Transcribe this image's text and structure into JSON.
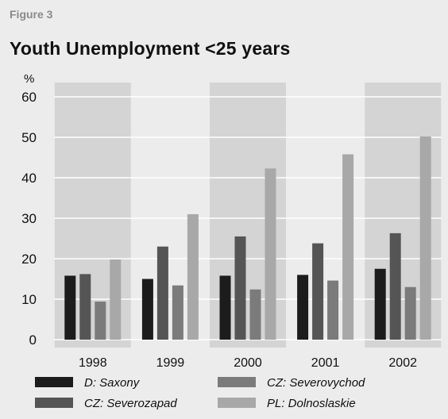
{
  "figure_label": "Figure 3",
  "chart_data": {
    "type": "bar",
    "title": "Youth Unemployment <25 years",
    "ylabel": "%",
    "xlabel": "",
    "ylim": [
      0,
      60
    ],
    "yticks": [
      0,
      10,
      20,
      30,
      40,
      50,
      60
    ],
    "grid": true,
    "categories": [
      "1998",
      "1999",
      "2000",
      "2001",
      "2002"
    ],
    "series": [
      {
        "name": "D: Saxony",
        "color": "#1c1c1c",
        "values": [
          15.8,
          15.0,
          15.8,
          16.0,
          17.5
        ]
      },
      {
        "name": "CZ: Severozapad",
        "color": "#555555",
        "values": [
          16.2,
          23.0,
          25.5,
          23.8,
          26.3
        ]
      },
      {
        "name": "CZ: Severovychod",
        "color": "#7b7b7b",
        "values": [
          9.4,
          13.4,
          12.4,
          14.6,
          13.0
        ]
      },
      {
        "name": "PL: Dolnoslaskie",
        "color": "#a8a8a8",
        "values": [
          19.8,
          31.0,
          42.3,
          45.8,
          50.2
        ]
      }
    ],
    "shaded_categories": [
      "1998",
      "2000",
      "2002"
    ],
    "legend_placement": "bottom"
  }
}
